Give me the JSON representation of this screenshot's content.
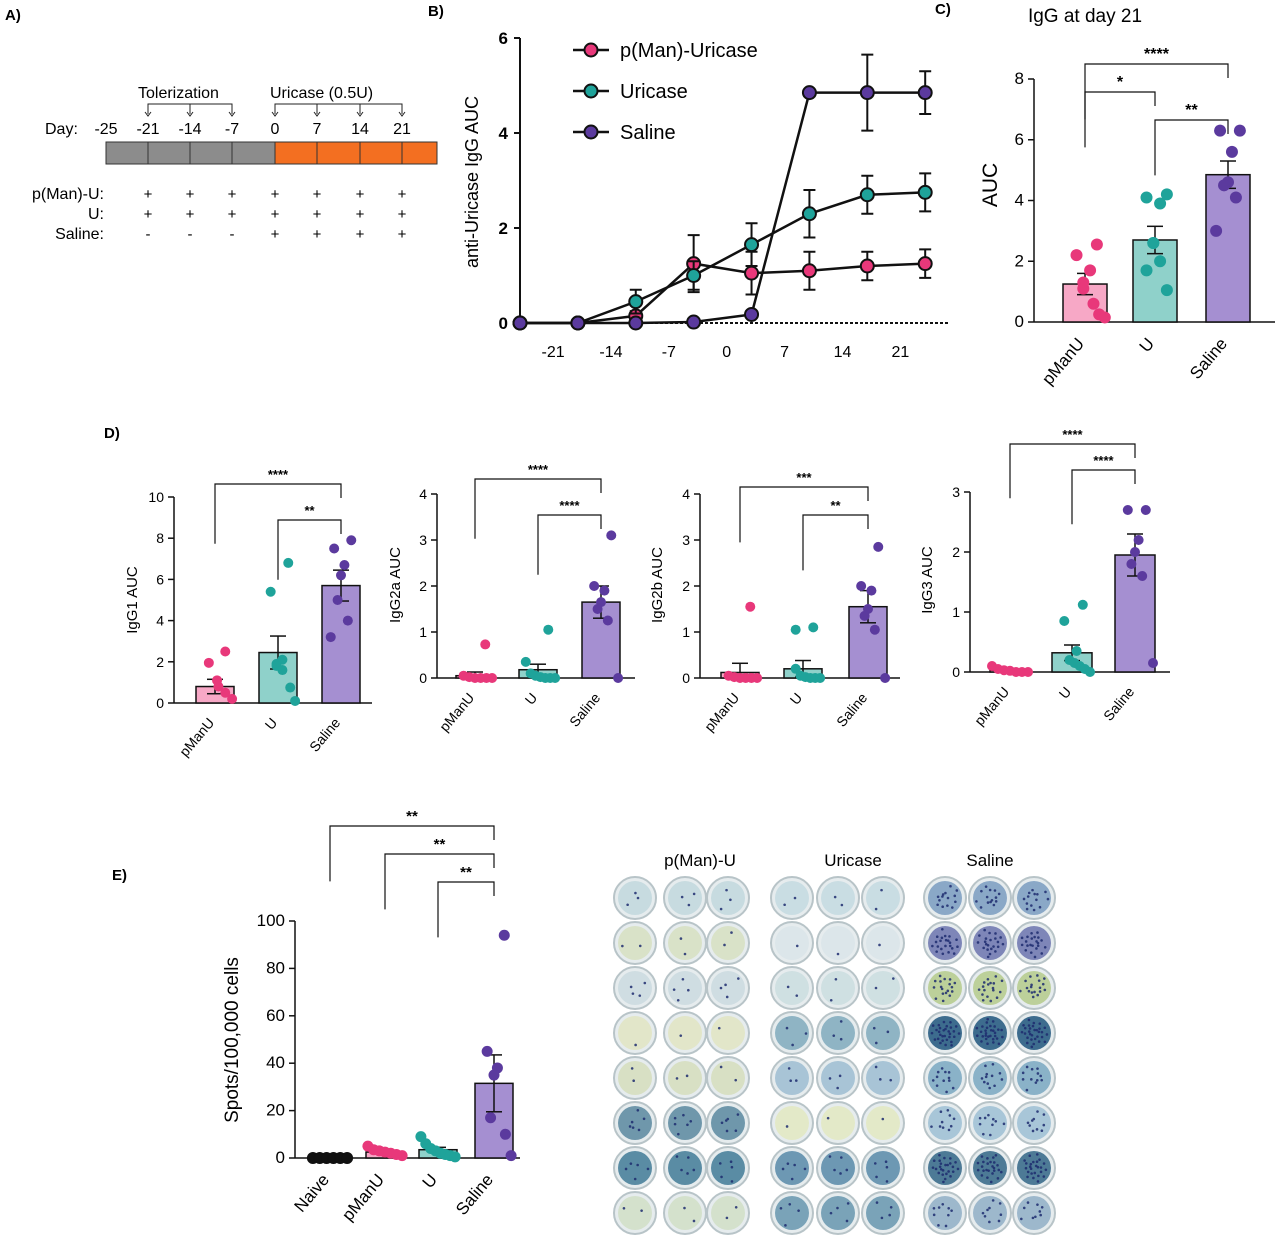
{
  "colors": {
    "pink": "#e8387a",
    "pink_fill": "#f7a8c6",
    "teal": "#1fa39a",
    "teal_fill": "#8fd1ca",
    "purple": "#5b3a9e",
    "purple_fill": "#a58fd1",
    "black": "#111111",
    "grey_bar": "#8c8c8c",
    "orange_bar": "#f36f21"
  },
  "panel_labels": {
    "a": "A)",
    "b": "B)",
    "c": "C)",
    "d": "D)",
    "e": "E)"
  },
  "panel_a": {
    "tolerization_label": "Tolerization",
    "uricase_label": "Uricase (0.5U)",
    "day_label": "Day:",
    "days": [
      "-25",
      "-21",
      "-14",
      "-7",
      "0",
      "7",
      "14",
      "21"
    ],
    "rows": [
      {
        "label": "p(Man)-U:",
        "marks": [
          "",
          "+",
          "+",
          "+",
          "+",
          "+",
          "+",
          "+"
        ]
      },
      {
        "label": "U:",
        "marks": [
          "",
          "+",
          "+",
          "+",
          "+",
          "+",
          "+",
          "+"
        ]
      },
      {
        "label": "Saline:",
        "marks": [
          "",
          "-",
          "-",
          "-",
          "+",
          "+",
          "+",
          "+"
        ]
      }
    ]
  },
  "chart_data": [
    {
      "id": "B",
      "type": "line",
      "title": "",
      "ylabel": "anti-Uricase IgG AUC",
      "xlabel": "",
      "xlim": [
        -25,
        27
      ],
      "ylim": [
        0,
        6
      ],
      "xticks": [
        "-21",
        "-14",
        "-7",
        "0",
        "7",
        "14",
        "21"
      ],
      "xtick_values": [
        -21,
        -14,
        -7,
        0,
        7,
        14,
        21
      ],
      "yticks": [
        "0",
        "2",
        "4",
        "6"
      ],
      "legend_position": "top-left",
      "series": [
        {
          "name": "p(Man)-Uricase",
          "color": "#e8387a",
          "x": [
            -25,
            -18,
            -11,
            -4,
            3,
            10,
            17,
            24
          ],
          "y": [
            0,
            0,
            0.15,
            1.25,
            1.05,
            1.1,
            1.2,
            1.25
          ],
          "err": [
            0,
            0,
            0.1,
            0.6,
            0.45,
            0.4,
            0.3,
            0.3
          ]
        },
        {
          "name": "Uricase",
          "color": "#1fa39a",
          "x": [
            -25,
            -18,
            -11,
            -4,
            3,
            10,
            17,
            24
          ],
          "y": [
            0,
            0,
            0.45,
            1.0,
            1.65,
            2.3,
            2.7,
            2.75
          ],
          "err": [
            0,
            0,
            0.25,
            0.3,
            0.45,
            0.5,
            0.4,
            0.4
          ]
        },
        {
          "name": "Saline",
          "color": "#5b3a9e",
          "x": [
            -25,
            -18,
            -11,
            -4,
            3,
            10,
            17,
            24
          ],
          "y": [
            0,
            0,
            0,
            0.02,
            0.18,
            4.85,
            4.85,
            4.85
          ],
          "err": [
            0,
            0,
            0,
            0,
            0,
            0,
            0.8,
            0.45
          ]
        }
      ]
    },
    {
      "id": "C",
      "type": "bar",
      "title": "IgG at day 21",
      "ylabel": "AUC",
      "xlabel": "",
      "ylim": [
        0,
        8
      ],
      "yticks": [
        "0",
        "2",
        "4",
        "6",
        "8"
      ],
      "categories": [
        "pManU",
        "U",
        "Saline"
      ],
      "values": [
        1.25,
        2.7,
        4.85
      ],
      "sem": [
        0.35,
        0.45,
        0.45
      ],
      "points": [
        [
          2.55,
          2.2,
          1.7,
          1.3,
          1.1,
          0.6,
          0.25,
          0.15
        ],
        [
          4.2,
          4.1,
          3.9,
          2.6,
          2.6,
          2.0,
          1.7,
          1.05
        ],
        [
          6.3,
          6.3,
          5.6,
          4.6,
          4.5,
          4.1,
          3.0
        ]
      ],
      "significance": [
        {
          "from": 0,
          "to": 2,
          "label": "****"
        },
        {
          "from": 0,
          "to": 1,
          "label": "*"
        },
        {
          "from": 1,
          "to": 2,
          "label": "**"
        }
      ]
    },
    {
      "id": "D1",
      "type": "bar",
      "title": "",
      "ylabel": "IgG1 AUC",
      "xlabel": "",
      "ylim": [
        0,
        10
      ],
      "yticks": [
        "0",
        "2",
        "4",
        "6",
        "8",
        "10"
      ],
      "categories": [
        "pManU",
        "U",
        "Saline"
      ],
      "values": [
        0.8,
        2.45,
        5.7
      ],
      "sem": [
        0.35,
        0.8,
        0.75
      ],
      "points": [
        [
          2.5,
          1.95,
          1.1,
          0.8,
          0.5,
          0.2
        ],
        [
          6.8,
          5.4,
          2.1,
          1.9,
          1.8,
          1.6,
          0.75,
          0.1
        ],
        [
          7.9,
          7.5,
          6.7,
          6.2,
          5.0,
          4.0,
          3.2
        ]
      ],
      "significance": [
        {
          "from": 0,
          "to": 2,
          "label": "****"
        },
        {
          "from": 1,
          "to": 2,
          "label": "**"
        }
      ]
    },
    {
      "id": "D2",
      "type": "bar",
      "title": "",
      "ylabel": "IgG2a AUC",
      "xlabel": "",
      "ylim": [
        0,
        4
      ],
      "yticks": [
        "0",
        "1",
        "2",
        "3",
        "4"
      ],
      "categories": [
        "pManU",
        "U",
        "Saline"
      ],
      "values": [
        0.05,
        0.18,
        1.65
      ],
      "sem": [
        0.08,
        0.12,
        0.35
      ],
      "points": [
        [
          0.73,
          0.05,
          0.02,
          0.0,
          0.0,
          0.0,
          0.0
        ],
        [
          1.05,
          0.35,
          0.1,
          0.05,
          0.02,
          0.0,
          0.0,
          0.0
        ],
        [
          3.1,
          2.0,
          1.9,
          1.65,
          1.5,
          1.25,
          0.0
        ]
      ],
      "significance": [
        {
          "from": 0,
          "to": 2,
          "label": "****"
        },
        {
          "from": 1,
          "to": 2,
          "label": "****"
        }
      ]
    },
    {
      "id": "D3",
      "type": "bar",
      "title": "",
      "ylabel": "IgG2b AUC",
      "xlabel": "",
      "ylim": [
        0,
        4
      ],
      "yticks": [
        "0",
        "1",
        "2",
        "3",
        "4"
      ],
      "categories": [
        "pManU",
        "U",
        "Saline"
      ],
      "values": [
        0.12,
        0.2,
        1.55
      ],
      "sem": [
        0.2,
        0.18,
        0.35
      ],
      "points": [
        [
          1.55,
          0.05,
          0.02,
          0.0,
          0.0,
          0.0,
          0.0
        ],
        [
          1.1,
          1.05,
          0.2,
          0.05,
          0.02,
          0.0,
          0.0,
          0.0
        ],
        [
          2.85,
          2.0,
          1.9,
          1.5,
          1.35,
          1.05,
          0.0
        ]
      ],
      "significance": [
        {
          "from": 0,
          "to": 2,
          "label": "***"
        },
        {
          "from": 1,
          "to": 2,
          "label": "**"
        }
      ]
    },
    {
      "id": "D4",
      "type": "bar",
      "title": "",
      "ylabel": "IgG3 AUC",
      "xlabel": "",
      "ylim": [
        0,
        3
      ],
      "yticks": [
        "0",
        "1",
        "2",
        "3"
      ],
      "categories": [
        "pManU",
        "U",
        "Saline"
      ],
      "values": [
        0.03,
        0.32,
        1.95
      ],
      "sem": [
        0.02,
        0.13,
        0.35
      ],
      "points": [
        [
          0.1,
          0.05,
          0.03,
          0.02,
          0.0,
          0.0,
          0.0
        ],
        [
          1.12,
          0.85,
          0.35,
          0.2,
          0.15,
          0.1,
          0.05,
          0.0
        ],
        [
          2.7,
          2.7,
          2.2,
          2.0,
          1.8,
          1.6,
          0.15
        ]
      ],
      "significance": [
        {
          "from": 0,
          "to": 2,
          "label": "****"
        },
        {
          "from": 1,
          "to": 2,
          "label": "****"
        }
      ]
    },
    {
      "id": "E",
      "type": "bar",
      "title": "",
      "ylabel": "Spots/100,000 cells",
      "xlabel": "",
      "ylim": [
        0,
        100
      ],
      "yticks": [
        "0",
        "20",
        "40",
        "60",
        "80",
        "100"
      ],
      "categories": [
        "Naive",
        "pManU",
        "U",
        "Saline"
      ],
      "values": [
        0,
        2.5,
        3.5,
        31.5
      ],
      "sem": [
        0,
        0.6,
        1.0,
        12
      ],
      "points": [
        [
          0,
          0,
          0,
          0,
          0,
          0
        ],
        [
          5,
          3.5,
          3,
          2.5,
          2,
          1.5,
          1
        ],
        [
          9,
          6,
          4,
          3,
          2,
          1.5,
          1,
          0.5
        ],
        [
          94,
          45,
          38,
          35,
          17,
          10,
          1
        ]
      ],
      "significance": [
        {
          "from": 0,
          "to": 3,
          "label": "**"
        },
        {
          "from": 1,
          "to": 3,
          "label": "**"
        },
        {
          "from": 2,
          "to": 3,
          "label": "**"
        }
      ]
    }
  ],
  "elispot": {
    "groups": [
      "p(Man)-U",
      "Uricase",
      "Saline"
    ],
    "spot_density": [
      [
        3,
        2,
        4,
        1,
        2,
        6,
        5,
        2
      ],
      [
        2,
        1,
        2,
        3,
        3,
        1,
        5,
        4
      ],
      [
        14,
        22,
        18,
        30,
        12,
        10,
        25,
        9
      ]
    ]
  }
}
